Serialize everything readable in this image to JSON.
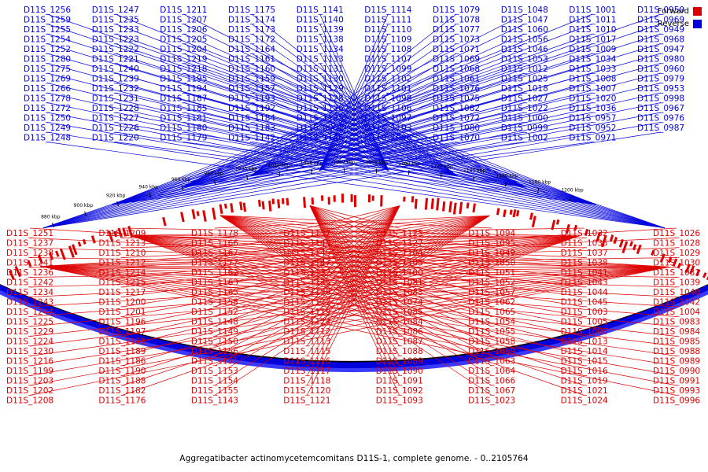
{
  "title": "Aggregatibacter actinomycetemcomitans D11S-1, complete genome. - 0..2105764",
  "legend": {
    "forward_label": "Forward",
    "reverse_label": "Reverse",
    "forward_color": "#dd0000",
    "reverse_color": "#0000dd"
  },
  "diagram_data": {
    "type": "circular-genome-map",
    "genome_length": 2105764,
    "visible_range_kbp": [
      880,
      1200
    ],
    "tick_labels": [
      "880 kbp",
      "900 kbp",
      "920 kbp",
      "940 kbp",
      "960 kbp",
      "980 kbp",
      "1000 kbp",
      "1020 kbp",
      "1040 kbp",
      "1060 kbp",
      "1080 kbp",
      "1100 kbp",
      "1120 kbp",
      "1140 kbp",
      "1160 kbp",
      "1180 kbp",
      "1200 kbp"
    ],
    "reverse_labels": [
      "D11S_1256",
      "D11S_1259",
      "D11S_1255",
      "D11S_1254",
      "D11S_1252",
      "D11S_1280",
      "D11S_1275",
      "D11S_1269",
      "D11S_1266",
      "D11S_1278",
      "D11S_1272",
      "D11S_1250",
      "D11S_1249",
      "D11S_1248",
      "D11S_1247",
      "D11S_1235",
      "D11S_1233",
      "D11S_1223",
      "D11S_1222",
      "D11S_1221",
      "D11S_1240",
      "D11S_1239",
      "D11S_1232",
      "D11S_1231",
      "D11S_1228",
      "D11S_1227",
      "D11S_1226",
      "D11S_1220",
      "D11S_1211",
      "D11S_1207",
      "D11S_1206",
      "D11S_1205",
      "D11S_1204",
      "D11S_1219",
      "D11S_1218",
      "D11S_1195",
      "D11S_1194",
      "D11S_1187",
      "D11S_1185",
      "D11S_1181",
      "D11S_1180",
      "D11S_1179",
      "D11S_1175",
      "D11S_1174",
      "D11S_1173",
      "D11S_1172",
      "D11S_1164",
      "D11S_1161",
      "D11S_1160",
      "D11S_1159",
      "D11S_1157",
      "D11S_1193",
      "D11S_1192",
      "D11S_1184",
      "D11S_1183",
      "D11S_1142",
      "D11S_1141",
      "D11S_1140",
      "D11S_1139",
      "D11S_1138",
      "D11S_1134",
      "D11S_1133",
      "D11S_1131",
      "D11S_1130",
      "D11S_1129",
      "D11S_1128",
      "D11S_1126",
      "D11S_1125",
      "D11S_0001",
      "D11S_1146",
      "D11S_1114",
      "D11S_1111",
      "D11S_1110",
      "D11S_1109",
      "D11S_1108",
      "D11S_1107",
      "D11S_1099",
      "D11S_1102",
      "D11S_1101",
      "D11S_1098",
      "D11S_1106",
      "D11S_1097",
      "D11S_1103",
      "D11S_1096",
      "D11S_1079",
      "D11S_1078",
      "D11S_1077",
      "D11S_1073",
      "D11S_1071",
      "D11S_1069",
      "D11S_1068",
      "D11S_1061",
      "D11S_1076",
      "D11S_1075",
      "D11S_1082",
      "D11S_1072",
      "D11S_1080",
      "D11S_1070",
      "D11S_1048",
      "D11S_1047",
      "D11S_1060",
      "D11S_1056",
      "D11S_1046",
      "D11S_1053",
      "D11S_1012",
      "D11S_1025",
      "D11S_1018",
      "D11S_1027",
      "D11S_1022",
      "D11S_1000",
      "D11S_0999",
      "D11S_1002",
      "D11S_1001",
      "D11S_1011",
      "D11S_1010",
      "D11S_1017",
      "D11S_1009",
      "D11S_1034",
      "D11S_1033",
      "D11S_1008",
      "D11S_1007",
      "D11S_1020",
      "D11S_1036",
      "D11S_0957",
      "D11S_0952",
      "D11S_0971",
      "D11S_0950",
      "D11S_0969",
      "D11S_0949",
      "D11S_0968",
      "D11S_0947",
      "D11S_0980",
      "D11S_0960",
      "D11S_0979",
      "D11S_0953",
      "D11S_0998",
      "D11S_0967",
      "D11S_0976",
      "D11S_0987"
    ],
    "forward_labels": [
      "D11S_1251",
      "D11S_1237",
      "D11S_1238",
      "D11S_1241",
      "D11S_1236",
      "D11S_1242",
      "D11S_1234",
      "D11S_1243",
      "D11S_1244",
      "D11S_1225",
      "D11S_1229",
      "D11S_1224",
      "D11S_1230",
      "D11S_1216",
      "D11S_1199",
      "D11S_1203",
      "D11S_1202",
      "D11S_1208",
      "D11S_1209",
      "D11S_1213",
      "D11S_1210",
      "D11S_1212",
      "D11S_1214",
      "D11S_1215",
      "D11S_1217",
      "D11S_1200",
      "D11S_1201",
      "D11S_1196",
      "D11S_1197",
      "D11S_1191",
      "D11S_1189",
      "D11S_1186",
      "D11S_1190",
      "D11S_1188",
      "D11S_1182",
      "D11S_1176",
      "D11S_1178",
      "D11S_1166",
      "D11S_1167",
      "D11S_1177",
      "D11S_1162",
      "D11S_1163",
      "D11S_1165",
      "D11S_1158",
      "D11S_1152",
      "D11S_1148",
      "D11S_1149",
      "D11S_1150",
      "D11S_1156",
      "D11S_1151",
      "D11S_1153",
      "D11S_1154",
      "D11S_1155",
      "D11S_1143",
      "D11S_1137",
      "D11S_1144",
      "D11S_1145",
      "D11S_1147",
      "D11S_1132",
      "D11S_1135",
      "D11S_1136",
      "D11S_1122",
      "D11S_1119",
      "D11S_1124",
      "D11S_1112",
      "D11S_1113",
      "D11S_1115",
      "D11S_1116",
      "D11S_1117",
      "D11S_1118",
      "D11S_1120",
      "D11S_1121",
      "D11S_1123",
      "D11S_1127",
      "D11S_1104",
      "D11S_1105",
      "D11S_1100",
      "D11S_1081",
      "D11S_1083",
      "D11S_1074",
      "D11S_1085",
      "D11S_1084",
      "D11S_1086",
      "D11S_1087",
      "D11S_1088",
      "D11S_1089",
      "D11S_1090",
      "D11S_1091",
      "D11S_1092",
      "D11S_1093",
      "D11S_1094",
      "D11S_1095",
      "D11S_1049",
      "D11S_1050",
      "D11S_1051",
      "D11S_1052",
      "D11S_1057",
      "D11S_1062",
      "D11S_1065",
      "D11S_1054",
      "D11S_1055",
      "D11S_1058",
      "D11S_1059",
      "D11S_1063",
      "D11S_1064",
      "D11S_1066",
      "D11S_1067",
      "D11S_1023",
      "D11S_1032",
      "D11S_1035",
      "D11S_1037",
      "D11S_1038",
      "D11S_1041",
      "D11S_1043",
      "D11S_1044",
      "D11S_1045",
      "D11S_1003",
      "D11S_1005",
      "D11S_1006",
      "D11S_1013",
      "D11S_1014",
      "D11S_1015",
      "D11S_1016",
      "D11S_1019",
      "D11S_1021",
      "D11S_1024",
      "D11S_1026",
      "D11S_1028",
      "D11S_1029",
      "D11S_1030",
      "D11S_1031",
      "D11S_1039",
      "D11S_1040",
      "D11S_1042",
      "D11S_1004",
      "D11S_0983",
      "D11S_0984",
      "D11S_0985",
      "D11S_0988",
      "D11S_0989",
      "D11S_0990",
      "D11S_0991",
      "D11S_0993",
      "D11S_0996"
    ]
  }
}
